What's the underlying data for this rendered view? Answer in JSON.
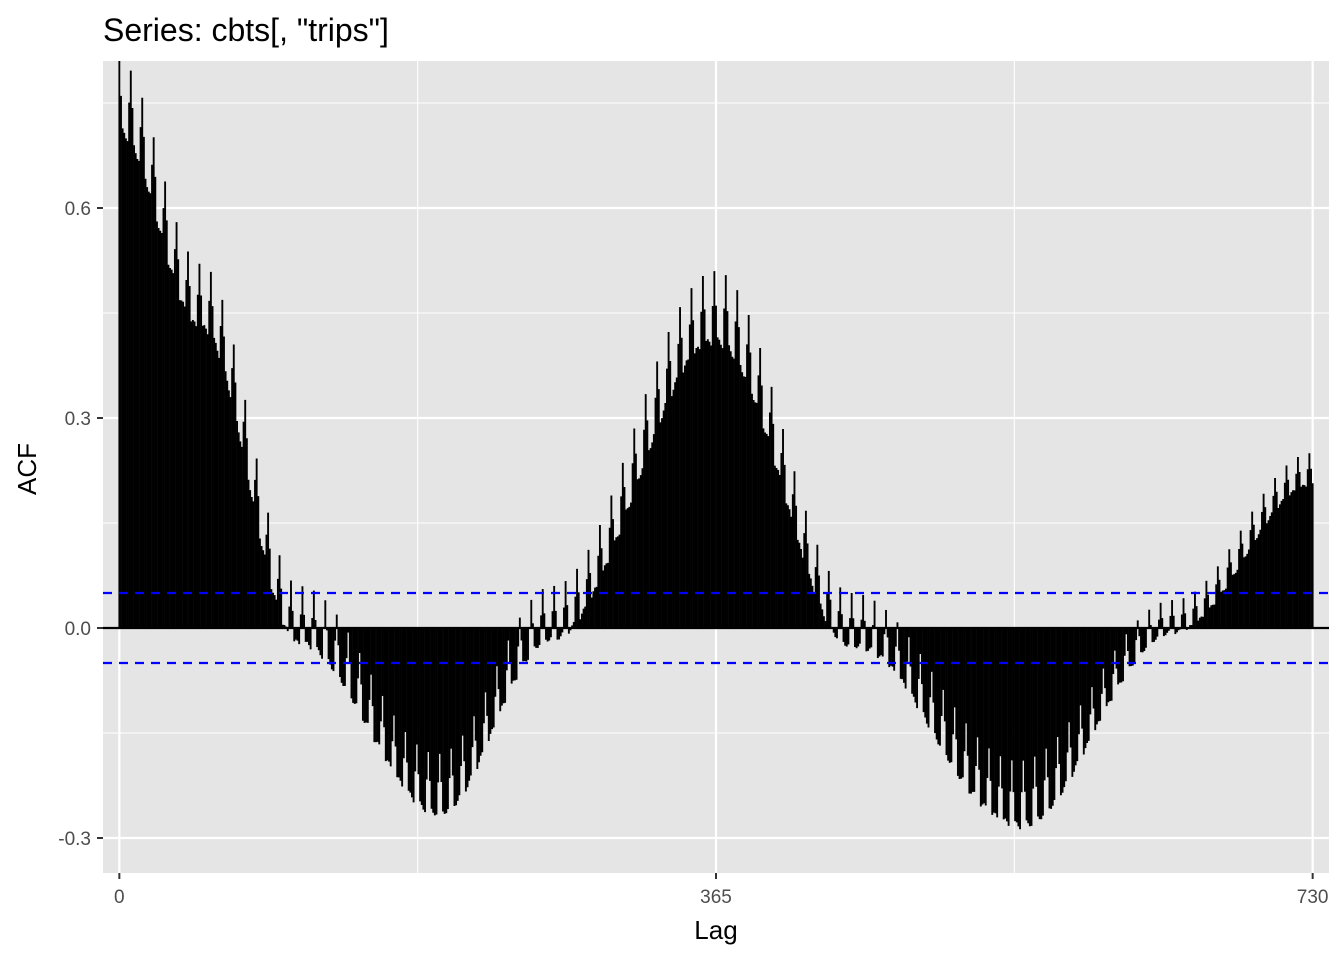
{
  "chart_data": {
    "type": "bar",
    "subtype": "acf",
    "title": "Series: cbts[, \"trips\"]",
    "xlabel": "Lag",
    "ylabel": "ACF",
    "xlim": [
      -10,
      740
    ],
    "ylim": [
      -0.35,
      0.81
    ],
    "x_ticks": [
      0,
      365,
      730
    ],
    "x_tick_labels": [
      "0",
      "365",
      "730"
    ],
    "y_ticks": [
      -0.3,
      0.0,
      0.3,
      0.6
    ],
    "y_tick_labels": [
      "-0.3",
      "0.0",
      "0.3",
      "0.6"
    ],
    "y_minor_gridlines": [
      -0.15,
      0.15,
      0.45,
      0.75
    ],
    "x_minor_gridlines": [
      182.5,
      547.5
    ],
    "confidence_bounds": [
      0.05,
      -0.05
    ],
    "max_lag": 730,
    "weekly_period": 7,
    "envelope_description_points": [
      {
        "lag": 0,
        "acf_max": 0.81,
        "acf_min": 0.7
      },
      {
        "lag": 50,
        "acf_max": 0.52,
        "acf_min": 0.42
      },
      {
        "lag": 110,
        "acf_max": 0.06,
        "acf_min": -0.03
      },
      {
        "lag": 195,
        "acf_max": -0.18,
        "acf_min": -0.27
      },
      {
        "lag": 265,
        "acf_max": 0.06,
        "acf_min": -0.02
      },
      {
        "lag": 365,
        "acf_max": 0.51,
        "acf_min": 0.4
      },
      {
        "lag": 448,
        "acf_max": 0.05,
        "acf_min": -0.03
      },
      {
        "lag": 550,
        "acf_max": -0.19,
        "acf_min": -0.29
      },
      {
        "lag": 645,
        "acf_max": 0.04,
        "acf_min": -0.01
      },
      {
        "lag": 730,
        "acf_max": 0.25,
        "acf_min": 0.2
      }
    ],
    "colors": {
      "panel_background": "#e5e5e5",
      "grid": "#ffffff",
      "bars": "#000000",
      "zero_line": "#000000",
      "confidence_line": "#0000ff",
      "tick_text": "#4d4d4d"
    },
    "grid": true,
    "legend": "none"
  }
}
